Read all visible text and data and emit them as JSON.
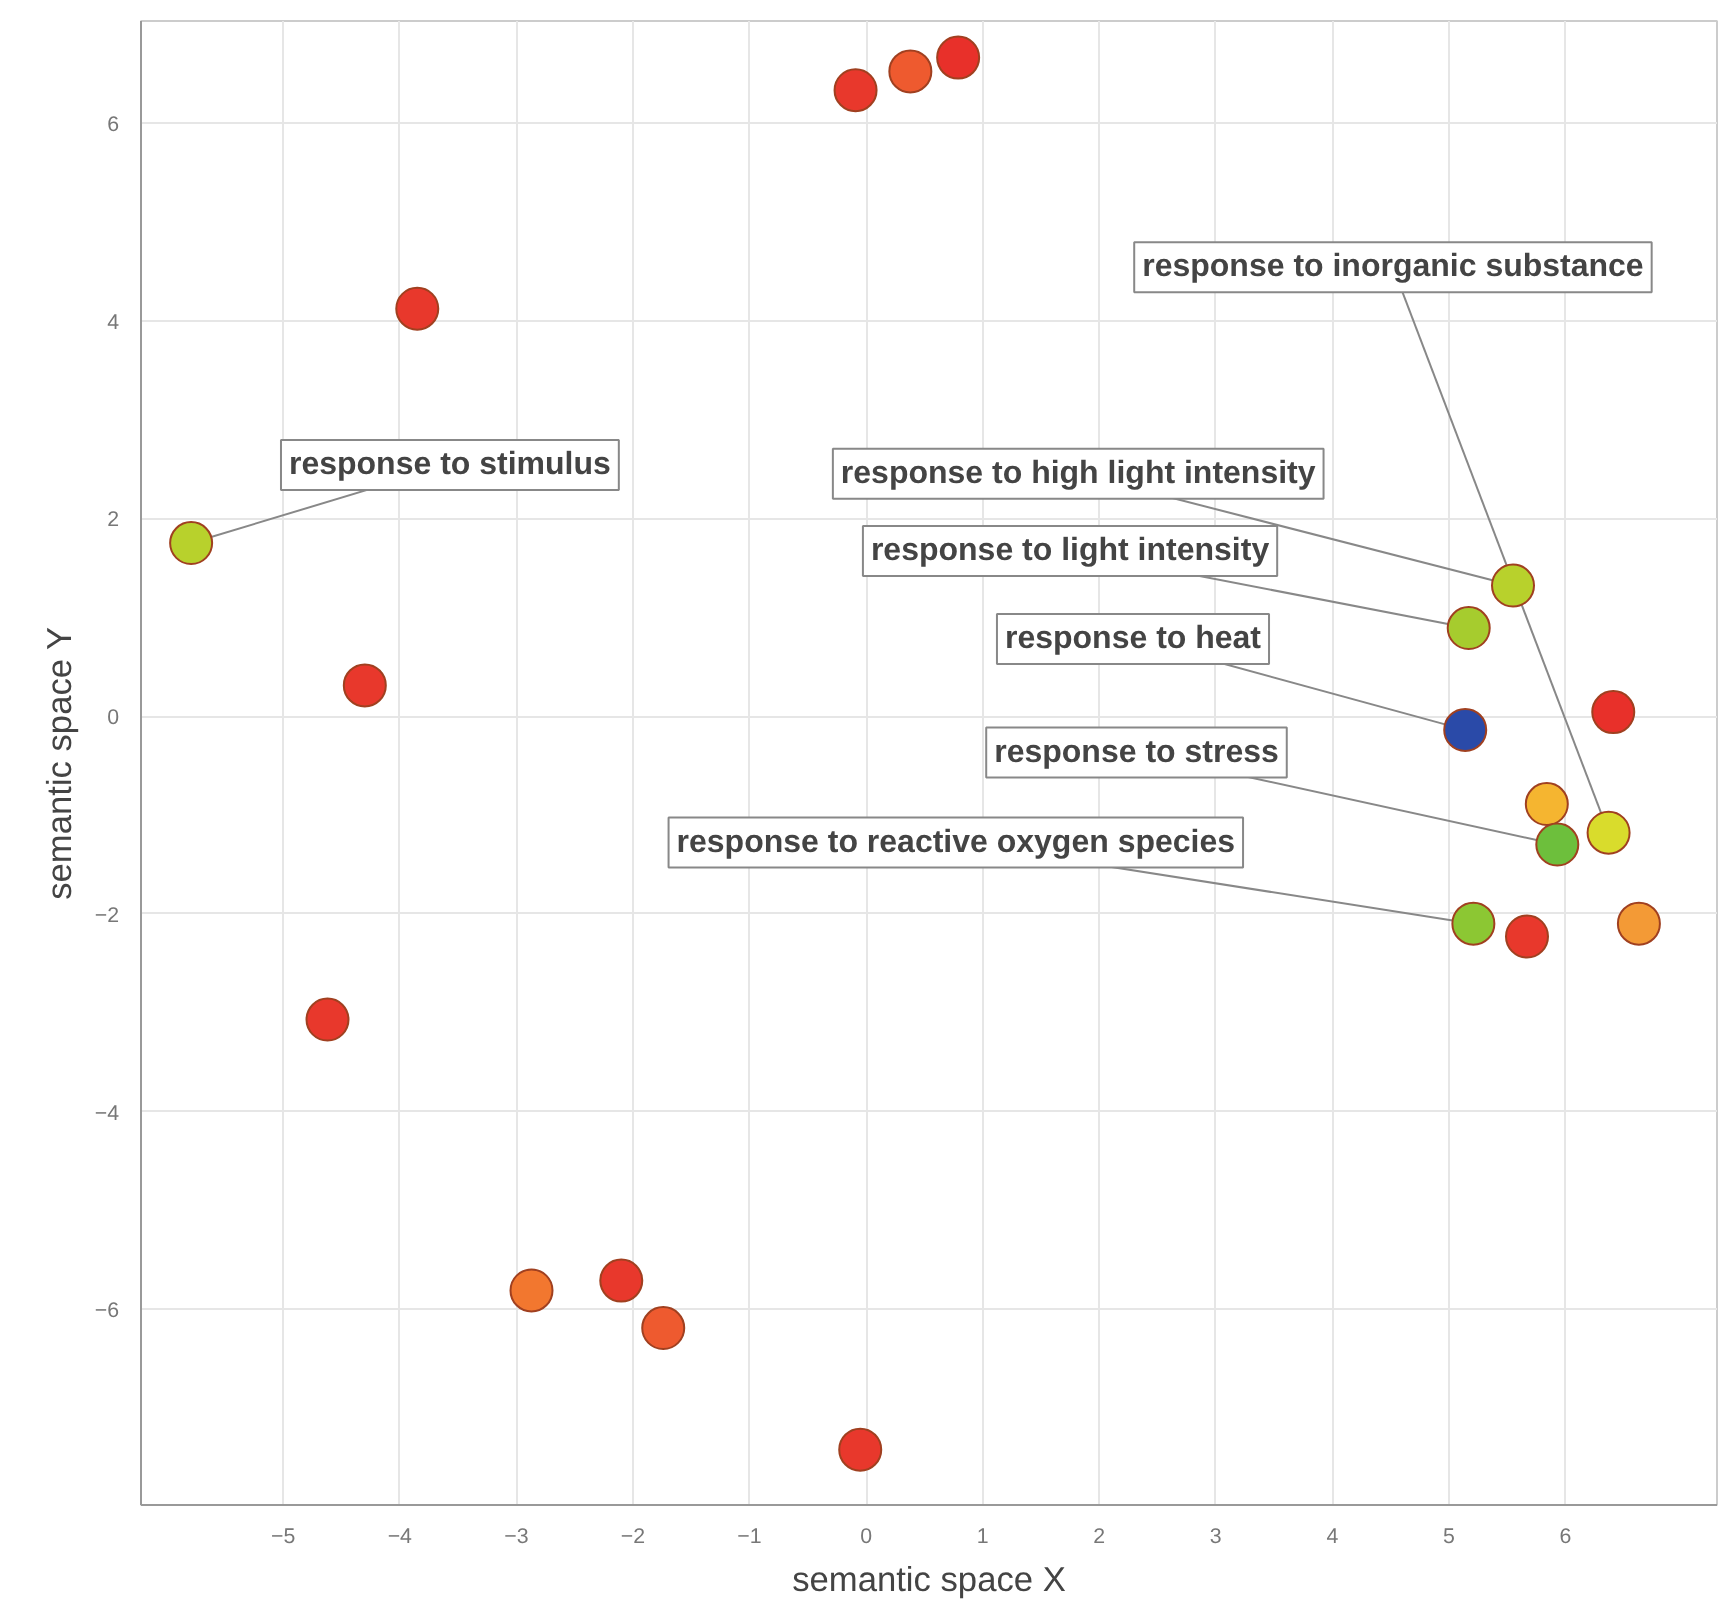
{
  "chart_data": {
    "type": "scatter",
    "xlabel": "semantic space X",
    "ylabel": "semantic space Y",
    "x": [
      -0.09,
      0.38,
      0.79,
      -3.85,
      -5.79,
      -4.3,
      -4.62,
      -2.87,
      -2.1,
      -1.74,
      -0.05,
      5.55,
      5.17,
      5.14,
      6.41,
      5.84,
      5.93,
      6.37,
      5.21,
      5.67,
      6.63
    ],
    "values": [
      6.33,
      6.52,
      6.66,
      4.12,
      1.75,
      0.31,
      -3.07,
      -5.81,
      -5.71,
      -6.19,
      -7.42,
      1.32,
      0.89,
      -0.14,
      0.04,
      -0.89,
      -1.3,
      -1.18,
      -2.1,
      -2.23,
      -2.1
    ],
    "colors": [
      "#e8382c",
      "#ee5a2f",
      "#e8302a",
      "#e8382c",
      "#b8d12c",
      "#e8382c",
      "#e8382c",
      "#f2772f",
      "#e8382c",
      "#ee5a2f",
      "#e8382c",
      "#b8d12c",
      "#a6cc2e",
      "#2a4aa8",
      "#e8302a",
      "#f5b530",
      "#6dbf3c",
      "#d9dc2c",
      "#8cc733",
      "#e8382c",
      "#f39a36"
    ],
    "xlim": [
      -6.22,
      7.3
    ],
    "ylim": [
      -7.98,
      7.03
    ],
    "xticks": [
      -5,
      -4,
      -3,
      -2,
      -1,
      0,
      1,
      2,
      3,
      4,
      5,
      6
    ],
    "yticks": [
      -6,
      -4,
      -2,
      0,
      2,
      4,
      6
    ],
    "grid": true,
    "marker": "circle",
    "annotations": [
      {
        "text": "response to stimulus",
        "x": -5.79,
        "y": 1.75
      },
      {
        "text": "response to high light intensity",
        "x": 5.55,
        "y": 1.32
      },
      {
        "text": "response to light intensity",
        "x": 5.17,
        "y": 0.89
      },
      {
        "text": "response to heat",
        "x": 5.14,
        "y": -0.14
      },
      {
        "text": "response to stress",
        "x": 5.93,
        "y": -1.3
      },
      {
        "text": "response to reactive oxygen species",
        "x": 5.21,
        "y": -2.1
      },
      {
        "text": "response to inorganic substance",
        "x": 6.37,
        "y": -1.18
      }
    ]
  }
}
